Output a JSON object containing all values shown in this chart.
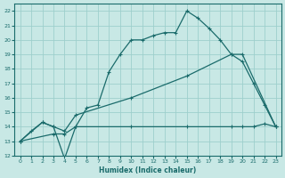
{
  "xlabel": "Humidex (Indice chaleur)",
  "background_color": "#c8e8e5",
  "grid_color": "#9ecfcc",
  "line_color": "#1a6b6b",
  "xlim": [
    -0.5,
    23.5
  ],
  "ylim": [
    12,
    22.5
  ],
  "xticks": [
    0,
    1,
    2,
    3,
    4,
    5,
    6,
    7,
    8,
    9,
    10,
    11,
    12,
    13,
    14,
    15,
    16,
    17,
    18,
    19,
    20,
    21,
    22,
    23
  ],
  "yticks": [
    12,
    13,
    14,
    15,
    16,
    17,
    18,
    19,
    20,
    21,
    22
  ],
  "line1_x": [
    0,
    1,
    2,
    3,
    4,
    5,
    6,
    7,
    8,
    9,
    10,
    11,
    12,
    13,
    14,
    15,
    16,
    17,
    18,
    19,
    20,
    21,
    22,
    23
  ],
  "line1_y": [
    13,
    13.7,
    14.3,
    14.0,
    11.8,
    14.0,
    15.3,
    15.5,
    17.8,
    19.0,
    20.0,
    20.0,
    20.3,
    20.5,
    20.5,
    22.0,
    21.5,
    20.8,
    20.0,
    19.0,
    18.5,
    17.0,
    15.5,
    14.0
  ],
  "line2_x": [
    0,
    2,
    3,
    4,
    5,
    10,
    15,
    19,
    20,
    23
  ],
  "line2_y": [
    13,
    14.3,
    14.0,
    13.7,
    14.8,
    16.0,
    17.5,
    19.0,
    19.0,
    14.0
  ],
  "line3_x": [
    0,
    3,
    4,
    5,
    10,
    15,
    19,
    20,
    21,
    22,
    23
  ],
  "line3_y": [
    13,
    13.5,
    13.5,
    14.0,
    14.0,
    14.0,
    14.0,
    14.0,
    14.0,
    14.2,
    14.0
  ]
}
